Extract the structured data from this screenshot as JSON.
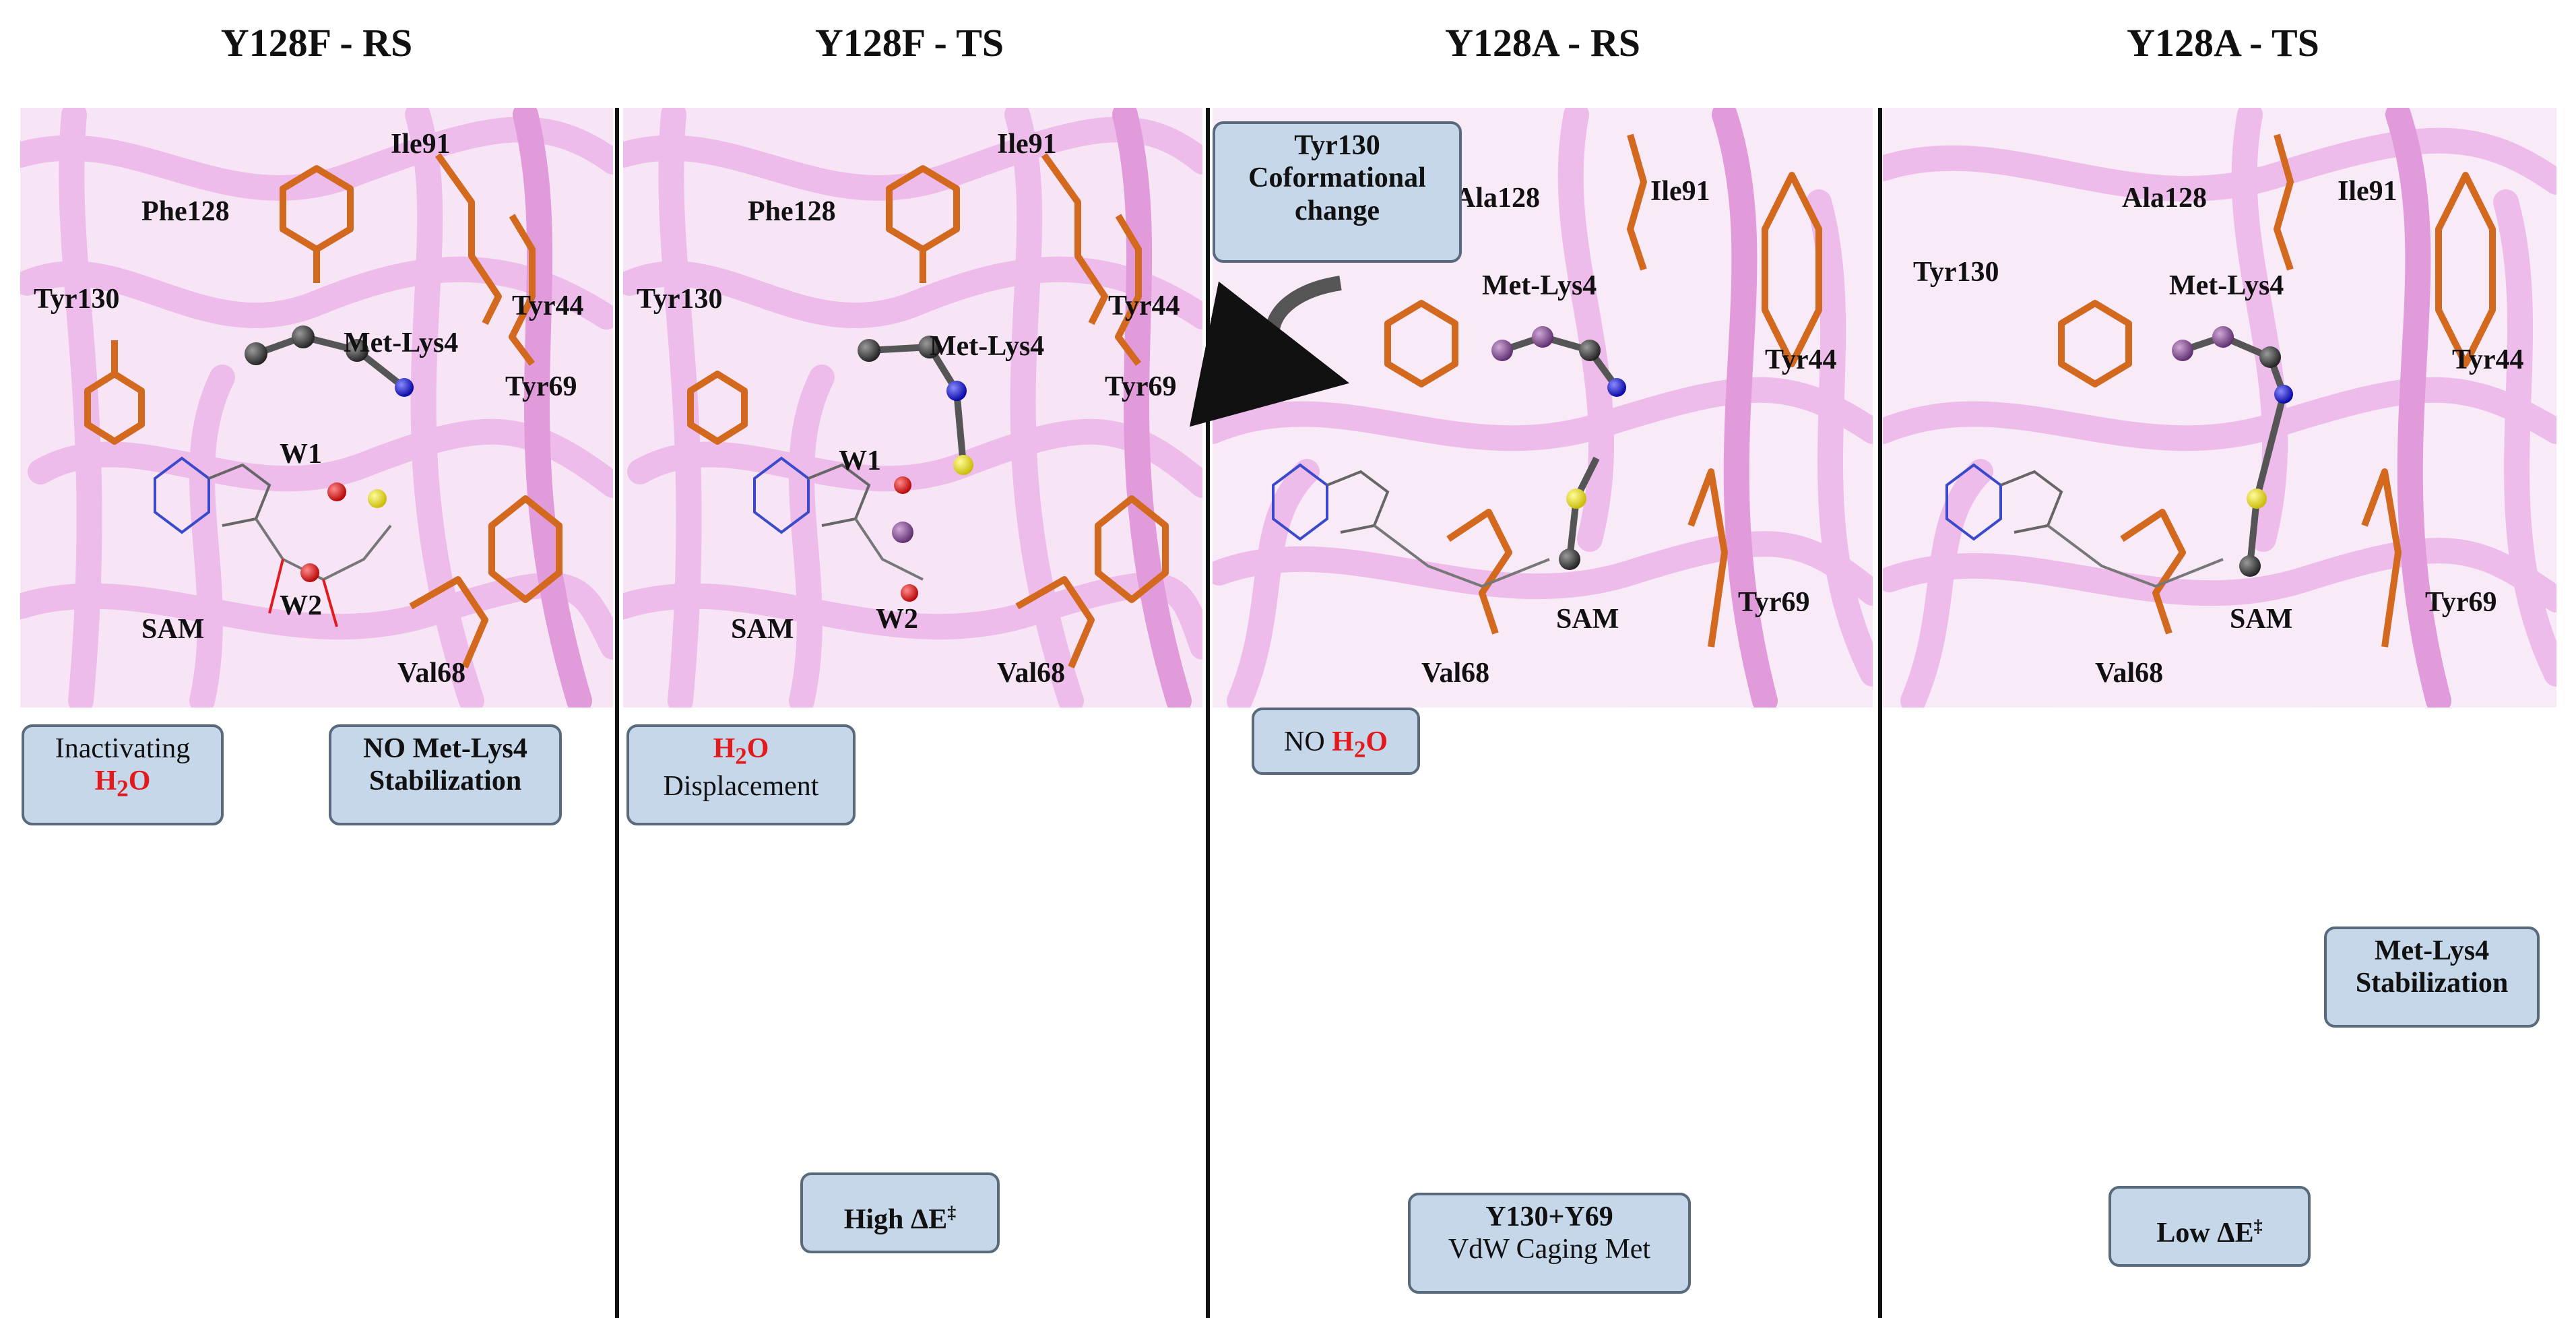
{
  "panels": [
    {
      "title": "Y128F - RS"
    },
    {
      "title": "Y128F - TS"
    },
    {
      "title": "Y128A - RS"
    },
    {
      "title": "Y128A - TS"
    }
  ],
  "labels": {
    "p1": {
      "ile91": "Ile91",
      "phe128": "Phe128",
      "tyr130": "Tyr130",
      "metlys4": "Met-Lys4",
      "tyr44": "Tyr44",
      "tyr69": "Tyr69",
      "w1": "W1",
      "w2": "W2",
      "sam": "SAM",
      "val68": "Val68"
    },
    "p2": {
      "ile91": "Ile91",
      "phe128": "Phe128",
      "tyr130": "Tyr130",
      "metlys4": "Met-Lys4",
      "tyr44": "Tyr44",
      "tyr69": "Tyr69",
      "w1": "W1",
      "w2": "W2",
      "sam": "SAM",
      "val68": "Val68"
    },
    "p3": {
      "ala128": "Ala128",
      "ile91": "Ile91",
      "metlys4": "Met-Lys4",
      "tyr44": "Tyr44",
      "sam": "SAM",
      "tyr69": "Tyr69",
      "val68": "Val68"
    },
    "p4": {
      "ala128": "Ala128",
      "ile91": "Ile91",
      "tyr130": "Tyr130",
      "metlys4": "Met-Lys4",
      "tyr44": "Tyr44",
      "sam": "SAM",
      "tyr69": "Tyr69",
      "val68": "Val68"
    }
  },
  "callouts": {
    "inactivating_line1": "Inactivating",
    "h2o_a": "H",
    "h2o_sub_a": "2",
    "h2o_b": "O",
    "no_metlys4_line1": "NO Met-Lys4",
    "no_metlys4_line2": "Stabilization",
    "displacement": "Displacement",
    "high_de": "High ΔE",
    "high_de_sup": "‡",
    "tyr130_conf_line1": "Tyr130",
    "tyr130_conf_line2": "Coformational",
    "tyr130_conf_line3": "change",
    "no_word": "NO",
    "vdw_line1": "Y130+Y69",
    "vdw_line2": "VdW Caging Met",
    "low_de": "Low ΔE",
    "low_de_sup": "‡",
    "metlys4_stab_line1": "Met-Lys4",
    "metlys4_stab_line2": "Stabilization"
  },
  "colors": {
    "protein": "#e7a6e3",
    "residue": "#d2691e",
    "surface_green": "#2e9d1a",
    "arrow_blue": "#1f2fe0",
    "arrow_green": "#1d7f2a",
    "callout_fill": "#c6d7ea",
    "highlight_red": "#e31a1c"
  }
}
